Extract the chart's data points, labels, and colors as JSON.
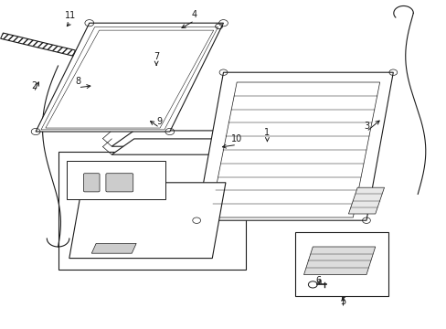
{
  "background_color": "#ffffff",
  "line_color": "#1a1a1a",
  "fig_width": 4.89,
  "fig_height": 3.6,
  "dpi": 100,
  "label_positions": {
    "1": [
      0.595,
      0.595,
      0.595,
      0.565
    ],
    "2": [
      0.085,
      0.735,
      0.075,
      0.76
    ],
    "3": [
      0.82,
      0.62,
      0.845,
      0.64
    ],
    "4": [
      0.43,
      0.94,
      0.395,
      0.9
    ],
    "5": [
      0.78,
      0.085,
      0.78,
      0.11
    ],
    "6": [
      0.725,
      0.155,
      0.745,
      0.165
    ],
    "7": [
      0.34,
      0.82,
      0.34,
      0.795
    ],
    "8": [
      0.175,
      0.75,
      0.22,
      0.74
    ],
    "9": [
      0.355,
      0.63,
      0.33,
      0.635
    ],
    "10": [
      0.53,
      0.58,
      0.49,
      0.55
    ],
    "11": [
      0.155,
      0.935,
      0.15,
      0.905
    ]
  }
}
